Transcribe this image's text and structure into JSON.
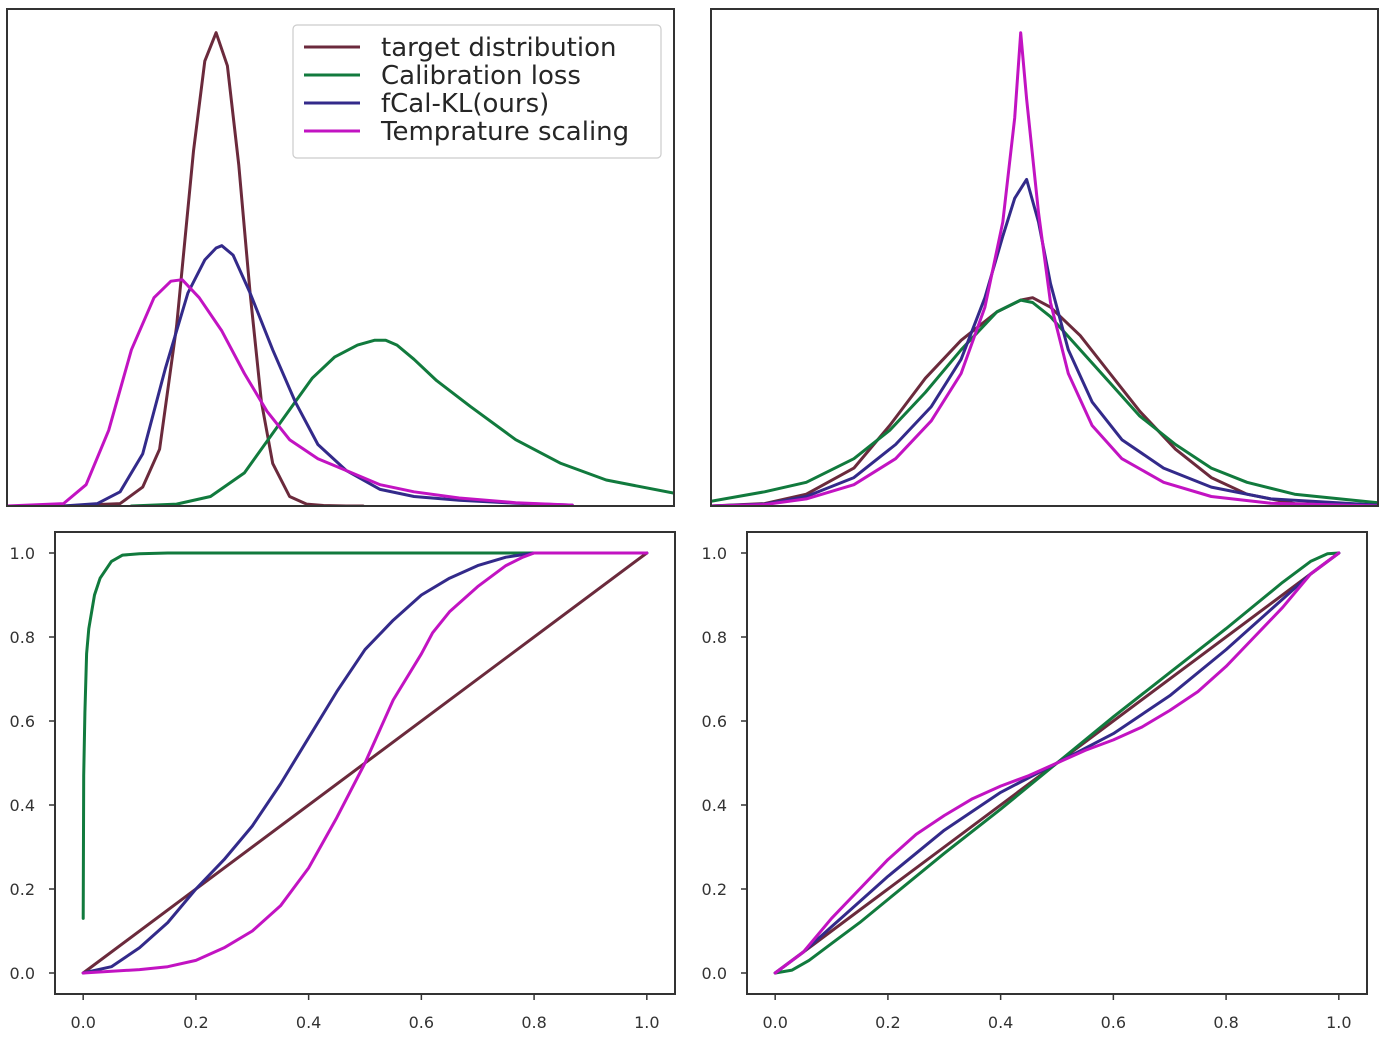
{
  "chart_data": [
    {
      "panel": "top-left",
      "type": "line",
      "title": "",
      "xlabel": "",
      "ylabel": "",
      "xlim": [
        -0.1,
        1.08
      ],
      "ylim": [
        0,
        1.05
      ],
      "grid": false,
      "show_ticks": false,
      "legend": {
        "placement": "top-right",
        "entries": [
          "target distribution",
          "Calibration loss",
          "fCal-KL(ours)",
          "Temprature scaling"
        ]
      },
      "series": [
        {
          "name": "target distribution",
          "color": "#6b2a3c",
          "x": [
            0.0,
            0.1,
            0.14,
            0.17,
            0.2,
            0.23,
            0.25,
            0.27,
            0.29,
            0.31,
            0.33,
            0.35,
            0.37,
            0.4,
            0.43,
            0.46,
            0.5,
            0.53
          ],
          "y": [
            0.0,
            0.005,
            0.04,
            0.12,
            0.38,
            0.75,
            0.94,
            1.0,
            0.93,
            0.72,
            0.45,
            0.22,
            0.09,
            0.02,
            0.004,
            0.001,
            0.0,
            0.0
          ]
        },
        {
          "name": "Calibration loss",
          "color": "#117a3d",
          "x": [
            0.12,
            0.2,
            0.26,
            0.32,
            0.38,
            0.44,
            0.48,
            0.52,
            0.55,
            0.57,
            0.59,
            0.62,
            0.66,
            0.72,
            0.8,
            0.88,
            0.96,
            1.08
          ],
          "y": [
            0.0,
            0.004,
            0.02,
            0.07,
            0.17,
            0.27,
            0.315,
            0.34,
            0.35,
            0.35,
            0.34,
            0.31,
            0.265,
            0.21,
            0.14,
            0.09,
            0.055,
            0.027
          ]
        },
        {
          "name": "fCal-KL(ours)",
          "color": "#332a8a",
          "x": [
            0.0,
            0.06,
            0.1,
            0.14,
            0.18,
            0.22,
            0.25,
            0.27,
            0.28,
            0.3,
            0.33,
            0.37,
            0.41,
            0.45,
            0.5,
            0.56,
            0.62,
            0.7,
            0.8,
            0.9
          ],
          "y": [
            0.0,
            0.005,
            0.03,
            0.11,
            0.29,
            0.45,
            0.52,
            0.545,
            0.55,
            0.53,
            0.45,
            0.33,
            0.22,
            0.13,
            0.075,
            0.035,
            0.02,
            0.012,
            0.006,
            0.002
          ]
        },
        {
          "name": "Temprature scaling",
          "color": "#c213c2",
          "x": [
            -0.1,
            0.0,
            0.04,
            0.08,
            0.12,
            0.16,
            0.19,
            0.21,
            0.24,
            0.28,
            0.32,
            0.36,
            0.4,
            0.45,
            0.5,
            0.56,
            0.62,
            0.7,
            0.8,
            0.9
          ],
          "y": [
            0.0,
            0.005,
            0.045,
            0.16,
            0.33,
            0.44,
            0.475,
            0.478,
            0.44,
            0.37,
            0.28,
            0.2,
            0.14,
            0.1,
            0.075,
            0.045,
            0.03,
            0.017,
            0.007,
            0.002
          ]
        }
      ]
    },
    {
      "panel": "top-right",
      "type": "line",
      "title": "",
      "xlabel": "",
      "ylabel": "",
      "xlim": [
        -0.04,
        1.08
      ],
      "ylim": [
        0,
        1.05
      ],
      "grid": false,
      "show_ticks": false,
      "series": [
        {
          "name": "target distribution",
          "color": "#6b2a3c",
          "x": [
            -0.04,
            0.05,
            0.12,
            0.2,
            0.26,
            0.32,
            0.38,
            0.44,
            0.48,
            0.5,
            0.53,
            0.58,
            0.63,
            0.68,
            0.74,
            0.8,
            0.86,
            0.94,
            1.08
          ],
          "y": [
            0.0,
            0.005,
            0.025,
            0.08,
            0.17,
            0.27,
            0.35,
            0.41,
            0.435,
            0.44,
            0.42,
            0.36,
            0.28,
            0.2,
            0.12,
            0.06,
            0.025,
            0.005,
            0.0
          ]
        },
        {
          "name": "Calibration loss",
          "color": "#117a3d",
          "x": [
            -0.04,
            0.05,
            0.12,
            0.2,
            0.26,
            0.32,
            0.38,
            0.44,
            0.48,
            0.5,
            0.53,
            0.58,
            0.63,
            0.68,
            0.74,
            0.8,
            0.86,
            0.94,
            1.08
          ],
          "y": [
            0.01,
            0.03,
            0.05,
            0.1,
            0.16,
            0.24,
            0.33,
            0.41,
            0.435,
            0.43,
            0.4,
            0.33,
            0.26,
            0.19,
            0.13,
            0.08,
            0.05,
            0.025,
            0.007
          ]
        },
        {
          "name": "fCal-KL(ours)",
          "color": "#332a8a",
          "x": [
            -0.04,
            0.05,
            0.12,
            0.2,
            0.27,
            0.33,
            0.38,
            0.42,
            0.45,
            0.47,
            0.49,
            0.51,
            0.53,
            0.56,
            0.6,
            0.65,
            0.72,
            0.8,
            0.9,
            1.08
          ],
          "y": [
            0.0,
            0.004,
            0.02,
            0.06,
            0.13,
            0.21,
            0.31,
            0.44,
            0.57,
            0.65,
            0.69,
            0.6,
            0.47,
            0.33,
            0.22,
            0.14,
            0.08,
            0.04,
            0.015,
            0.002
          ]
        },
        {
          "name": "Temprature scaling",
          "color": "#c213c2",
          "x": [
            -0.04,
            0.05,
            0.12,
            0.2,
            0.27,
            0.33,
            0.38,
            0.42,
            0.45,
            0.47,
            0.48,
            0.49,
            0.51,
            0.53,
            0.56,
            0.6,
            0.65,
            0.72,
            0.8,
            0.9,
            1.08
          ],
          "y": [
            0.0,
            0.003,
            0.015,
            0.045,
            0.1,
            0.18,
            0.28,
            0.42,
            0.6,
            0.82,
            1.0,
            0.86,
            0.62,
            0.43,
            0.28,
            0.17,
            0.1,
            0.05,
            0.02,
            0.006,
            0.0
          ]
        }
      ]
    },
    {
      "panel": "bottom-left",
      "type": "line",
      "title": "",
      "xlabel": "",
      "ylabel": "",
      "xlim": [
        -0.05,
        1.05
      ],
      "ylim": [
        -0.05,
        1.05
      ],
      "grid": false,
      "show_ticks": true,
      "xticks": [
        "0.0",
        "0.2",
        "0.4",
        "0.6",
        "0.8",
        "1.0"
      ],
      "yticks": [
        "0.0",
        "0.2",
        "0.4",
        "0.6",
        "0.8",
        "1.0"
      ],
      "series": [
        {
          "name": "Calibration loss",
          "color": "#117a3d",
          "x": [
            0.0,
            0.001,
            0.003,
            0.006,
            0.01,
            0.02,
            0.03,
            0.05,
            0.07,
            0.1,
            0.15,
            0.3,
            0.6,
            1.0
          ],
          "y": [
            0.13,
            0.47,
            0.62,
            0.76,
            0.82,
            0.9,
            0.94,
            0.98,
            0.995,
            0.998,
            1.0,
            1.0,
            1.0,
            1.0
          ]
        },
        {
          "name": "target distribution",
          "color": "#6b2a3c",
          "x": [
            0.0,
            1.0
          ],
          "y": [
            0.0,
            1.0
          ]
        },
        {
          "name": "fCal-KL(ours)",
          "color": "#332a8a",
          "x": [
            0.0,
            0.05,
            0.1,
            0.15,
            0.2,
            0.25,
            0.3,
            0.35,
            0.4,
            0.45,
            0.5,
            0.55,
            0.6,
            0.65,
            0.7,
            0.75,
            0.8,
            0.85,
            1.0
          ],
          "y": [
            0.0,
            0.015,
            0.06,
            0.12,
            0.2,
            0.27,
            0.35,
            0.45,
            0.56,
            0.67,
            0.77,
            0.84,
            0.9,
            0.94,
            0.97,
            0.99,
            1.0,
            1.0,
            1.0
          ]
        },
        {
          "name": "Temprature scaling",
          "color": "#c213c2",
          "x": [
            0.0,
            0.1,
            0.15,
            0.2,
            0.25,
            0.3,
            0.35,
            0.4,
            0.45,
            0.5,
            0.55,
            0.6,
            0.62,
            0.65,
            0.7,
            0.75,
            0.78,
            0.8,
            0.85,
            1.0
          ],
          "y": [
            0.0,
            0.008,
            0.015,
            0.03,
            0.06,
            0.1,
            0.16,
            0.25,
            0.37,
            0.5,
            0.65,
            0.76,
            0.81,
            0.86,
            0.92,
            0.97,
            0.99,
            1.0,
            1.0,
            1.0
          ]
        }
      ]
    },
    {
      "panel": "bottom-right",
      "type": "line",
      "title": "",
      "xlabel": "",
      "ylabel": "",
      "xlim": [
        -0.05,
        1.05
      ],
      "ylim": [
        -0.05,
        1.05
      ],
      "grid": false,
      "show_ticks": true,
      "xticks": [
        "0.0",
        "0.2",
        "0.4",
        "0.6",
        "0.8",
        "1.0"
      ],
      "yticks": [
        "0.0",
        "0.2",
        "0.4",
        "0.6",
        "0.8",
        "1.0"
      ],
      "series": [
        {
          "name": "target distribution",
          "color": "#6b2a3c",
          "x": [
            0.0,
            1.0
          ],
          "y": [
            0.0,
            1.0
          ]
        },
        {
          "name": "Calibration loss",
          "color": "#117a3d",
          "x": [
            0.0,
            0.03,
            0.06,
            0.1,
            0.15,
            0.2,
            0.3,
            0.4,
            0.5,
            0.6,
            0.7,
            0.8,
            0.9,
            0.95,
            0.98,
            1.0
          ],
          "y": [
            0.0,
            0.007,
            0.03,
            0.07,
            0.12,
            0.175,
            0.285,
            0.39,
            0.5,
            0.61,
            0.715,
            0.82,
            0.93,
            0.98,
            0.998,
            1.0
          ]
        },
        {
          "name": "fCal-KL(ours)",
          "color": "#332a8a",
          "x": [
            0.0,
            0.05,
            0.1,
            0.2,
            0.3,
            0.4,
            0.5,
            0.6,
            0.7,
            0.8,
            0.9,
            0.95,
            1.0
          ],
          "y": [
            0.0,
            0.05,
            0.11,
            0.23,
            0.34,
            0.43,
            0.5,
            0.57,
            0.66,
            0.77,
            0.89,
            0.95,
            1.0
          ]
        },
        {
          "name": "Temprature scaling",
          "color": "#c213c2",
          "x": [
            0.0,
            0.05,
            0.1,
            0.15,
            0.2,
            0.25,
            0.3,
            0.35,
            0.4,
            0.45,
            0.5,
            0.55,
            0.6,
            0.65,
            0.7,
            0.75,
            0.8,
            0.85,
            0.9,
            0.95,
            1.0
          ],
          "y": [
            0.0,
            0.05,
            0.13,
            0.2,
            0.27,
            0.33,
            0.375,
            0.415,
            0.445,
            0.47,
            0.5,
            0.53,
            0.555,
            0.585,
            0.625,
            0.67,
            0.73,
            0.8,
            0.87,
            0.95,
            1.0
          ]
        }
      ]
    }
  ]
}
